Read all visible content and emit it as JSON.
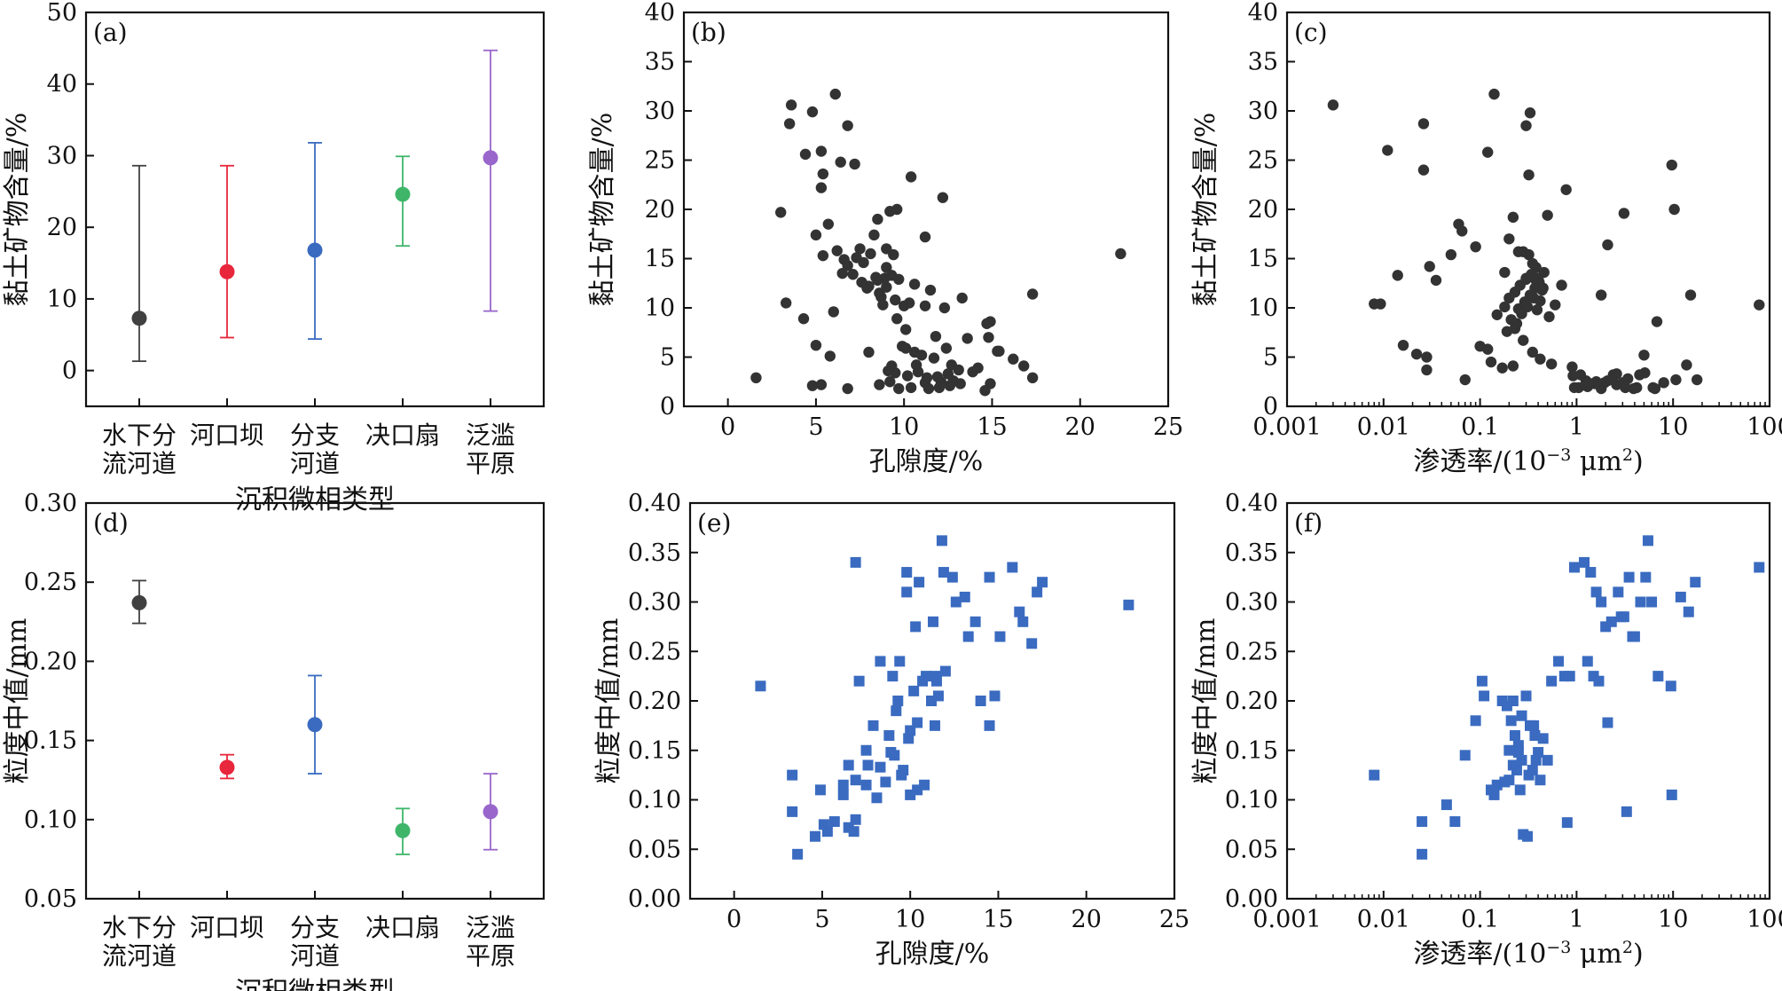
{
  "chart_data": [
    {
      "panel": "(a)",
      "type": "errorbar",
      "categories": [
        "水下分流河道",
        "河口坝",
        "分支河道",
        "决口扇",
        "泛滥平原"
      ],
      "category_labels": [
        [
          "水下分",
          "流河道"
        ],
        [
          "河口坝"
        ],
        [
          "分支",
          "河道"
        ],
        [
          "决口扇"
        ],
        [
          "泛滥",
          "平原"
        ]
      ],
      "values": [
        7.3,
        13.8,
        16.8,
        24.6,
        29.7
      ],
      "min": [
        1.3,
        4.6,
        4.4,
        17.4,
        8.3
      ],
      "max": [
        28.6,
        28.6,
        31.8,
        29.9,
        44.7
      ],
      "colors": [
        "#404040",
        "#e8263c",
        "#3a6bc0",
        "#3fb56a",
        "#9966cc"
      ],
      "xlabel": "沉积微相类型",
      "ylabel": "黏土矿物含量/%",
      "ylim": [
        -5,
        50
      ],
      "yticks": [
        0,
        10,
        20,
        30,
        40,
        50
      ],
      "ytick_labels": [
        "0",
        "10",
        "20",
        "30",
        "40",
        "50"
      ]
    },
    {
      "panel": "(b)",
      "type": "scatter",
      "marker": "circle",
      "color": "#333333",
      "xlabel": "孔隙度/%",
      "ylabel": "黏土矿物含量/%",
      "xlim": [
        -2.5,
        25
      ],
      "ylim": [
        0,
        40
      ],
      "xticks": [
        0,
        5,
        10,
        15,
        20,
        25
      ],
      "xtick_labels": [
        "0",
        "5",
        "10",
        "15",
        "20",
        "25"
      ],
      "yticks": [
        0,
        5,
        10,
        15,
        20,
        25,
        30,
        35,
        40
      ],
      "ytick_labels": [
        "0",
        "5",
        "10",
        "15",
        "20",
        "25",
        "30",
        "35",
        "40"
      ],
      "x": [
        3.6,
        3.5,
        4.8,
        6.1,
        6.8,
        5.3,
        5.4,
        3.0,
        4.4,
        7.2,
        9.2,
        6.4,
        5.3,
        5.7,
        6.2,
        6.6,
        7.1,
        7.5,
        8.1,
        8.5,
        9.4,
        5.0,
        3.3,
        4.3,
        11.2,
        10.4,
        12.2,
        13.3,
        14.9,
        22.3,
        17.3,
        9.0,
        9.6,
        8.3,
        5.0,
        5.8,
        8.0,
        9.9,
        10.1,
        10.6,
        11.0,
        11.7,
        12.7,
        13.9,
        14.2,
        14.8,
        15.4,
        16.2,
        16.8,
        17.3,
        1.6,
        4.8,
        5.3,
        6.8,
        8.6,
        9.2,
        9.7,
        10.4,
        11.4,
        12.0,
        12.6,
        13.2,
        14.9,
        14.6,
        9.1,
        9.5,
        10.2,
        10.8,
        11.3,
        11.9,
        12.5,
        13.1,
        9.3,
        10.7,
        11.2,
        12.1,
        12.8,
        10.0,
        10.3,
        9.5,
        8.6,
        11.5,
        9.0,
        10.6,
        8.9,
        7.6,
        9.3,
        9.0,
        8.5,
        7.9,
        8.7,
        9.7,
        6.5,
        6.8,
        7.3,
        7.7,
        8.4,
        8.0,
        8.8,
        6.0,
        5.4,
        9.6,
        11.8,
        12.3,
        14.7,
        15.3,
        13.6,
        10.1,
        11.2,
        12.4
      ],
      "y": [
        30.6,
        28.7,
        29.9,
        31.7,
        28.5,
        25.9,
        23.6,
        19.7,
        25.6,
        24.6,
        19.8,
        24.8,
        22.2,
        18.5,
        15.8,
        14.9,
        13.4,
        16.0,
        15.5,
        19.0,
        15.4,
        17.4,
        10.5,
        8.9,
        17.2,
        23.3,
        21.2,
        11.0,
        8.6,
        15.5,
        11.4,
        16.0,
        20.0,
        17.4,
        6.2,
        5.1,
        5.5,
        6.1,
        5.9,
        5.5,
        5.2,
        4.9,
        4.2,
        3.5,
        3.9,
        7.0,
        5.6,
        4.8,
        4.1,
        2.9,
        2.9,
        2.1,
        2.2,
        1.8,
        2.2,
        2.5,
        1.8,
        1.9,
        1.8,
        1.9,
        2.1,
        2.3,
        2.3,
        1.6,
        3.6,
        3.4,
        3.1,
        3.5,
        2.9,
        3.0,
        3.3,
        3.7,
        4.1,
        4.2,
        2.4,
        2.5,
        2.6,
        10.2,
        10.5,
        10.8,
        11.5,
        11.8,
        12.1,
        12.4,
        13.0,
        12.6,
        13.3,
        14.1,
        12.8,
        12.0,
        11.1,
        12.9,
        13.5,
        14.3,
        15.1,
        14.6,
        13.1,
        12.2,
        10.3,
        9.6,
        15.3,
        8.9,
        7.1,
        10.0,
        8.4,
        5.6,
        6.9,
        7.8,
        10.2,
        5.9
      ]
    },
    {
      "panel": "(c)",
      "type": "scatter",
      "marker": "circle",
      "color": "#333333",
      "xscale": "log",
      "xlabel": "渗透率/(10⁻³ μm²)",
      "ylabel": "黏土矿物含量/%",
      "xlim": [
        0.001,
        100
      ],
      "ylim": [
        0,
        40
      ],
      "xticks": [
        0.001,
        0.01,
        0.1,
        1,
        10,
        100
      ],
      "xtick_labels": [
        "0.001",
        "0.01",
        "0.1",
        "1",
        "10",
        "100"
      ],
      "yticks": [
        0,
        5,
        10,
        15,
        20,
        25,
        30,
        35,
        40
      ],
      "ytick_labels": [
        "0",
        "5",
        "10",
        "15",
        "20",
        "25",
        "30",
        "35",
        "40"
      ],
      "x": [
        0.003,
        0.0093,
        0.026,
        0.026,
        0.12,
        0.14,
        0.3,
        0.33,
        0.32,
        0.5,
        0.78,
        9.7,
        10.3,
        3.1,
        0.011,
        0.014,
        0.008,
        0.03,
        0.05,
        0.065,
        0.06,
        0.035,
        0.09,
        0.2,
        0.22,
        0.25,
        0.18,
        0.3,
        0.38,
        0.45,
        0.6,
        0.7,
        0.016,
        0.022,
        0.028,
        0.028,
        0.07,
        0.1,
        0.12,
        0.13,
        0.17,
        0.22,
        0.28,
        0.35,
        0.42,
        0.55,
        0.95,
        1.3,
        1.6,
        2.1,
        2.6,
        3.4,
        4.2,
        5.1,
        6.5,
        8.0,
        10.7,
        13.8,
        17.7,
        78,
        0.9,
        1.1,
        1.4,
        1.8,
        2.4,
        3.0,
        3.9,
        5.0,
        6.2,
        4.5,
        0.92,
        1.05,
        1.25,
        1.55,
        1.95,
        2.6,
        3.2,
        0.15,
        0.18,
        0.2,
        0.23,
        0.26,
        0.3,
        0.34,
        0.38,
        0.42,
        0.21,
        0.25,
        0.29,
        0.33,
        0.37,
        0.41,
        0.46,
        0.19,
        0.24,
        0.27,
        0.31,
        0.36,
        0.44,
        0.52,
        0.28,
        0.32,
        0.35,
        0.4,
        2.1,
        1.8,
        15.2,
        6.8,
        0.23,
        0.39
      ],
      "y": [
        30.6,
        10.4,
        28.7,
        24.0,
        25.8,
        31.7,
        28.5,
        29.8,
        23.5,
        19.4,
        22.0,
        24.5,
        20.0,
        19.6,
        26.0,
        13.3,
        10.4,
        14.2,
        15.4,
        17.8,
        18.5,
        12.8,
        16.2,
        17.0,
        19.2,
        15.7,
        13.6,
        13.0,
        12.8,
        12.0,
        10.3,
        12.3,
        6.2,
        5.3,
        5.0,
        3.7,
        2.7,
        6.1,
        5.8,
        4.5,
        3.9,
        4.1,
        6.7,
        5.5,
        4.8,
        4.3,
        1.9,
        2.0,
        2.5,
        2.6,
        2.2,
        2.8,
        1.9,
        3.4,
        1.8,
        2.4,
        2.7,
        4.2,
        2.7,
        10.3,
        4.0,
        3.2,
        2.3,
        1.8,
        3.2,
        2.4,
        1.8,
        5.2,
        1.9,
        3.2,
        3.1,
        1.9,
        2.6,
        2.3,
        2.4,
        3.3,
        1.9,
        9.3,
        10.1,
        11.0,
        11.6,
        12.3,
        12.9,
        13.4,
        14.1,
        10.7,
        8.8,
        9.9,
        10.6,
        11.3,
        12.0,
        12.6,
        13.6,
        7.6,
        8.4,
        9.4,
        10.1,
        11.0,
        11.8,
        9.1,
        15.7,
        15.4,
        14.5,
        13.0,
        16.4,
        11.3,
        11.3,
        8.6,
        7.9,
        9.8
      ]
    },
    {
      "panel": "(d)",
      "type": "errorbar",
      "categories": [
        "水下分流河道",
        "河口坝",
        "分支河道",
        "决口扇",
        "泛滥平原"
      ],
      "category_labels": [
        [
          "水下分",
          "流河道"
        ],
        [
          "河口坝"
        ],
        [
          "分支",
          "河道"
        ],
        [
          "决口扇"
        ],
        [
          "泛滥",
          "平原"
        ]
      ],
      "values": [
        0.237,
        0.133,
        0.16,
        0.093,
        0.105
      ],
      "min": [
        0.224,
        0.126,
        0.129,
        0.078,
        0.081
      ],
      "max": [
        0.251,
        0.141,
        0.191,
        0.107,
        0.129
      ],
      "colors": [
        "#404040",
        "#e8263c",
        "#3a6bc0",
        "#3fb56a",
        "#9966cc"
      ],
      "xlabel": "沉积微相类型",
      "ylabel": "粒度中值/mm",
      "ylim": [
        0.05,
        0.3
      ],
      "yticks": [
        0.05,
        0.1,
        0.15,
        0.2,
        0.25,
        0.3
      ],
      "ytick_labels": [
        "0.05",
        "0.10",
        "0.15",
        "0.20",
        "0.25",
        "0.30"
      ]
    },
    {
      "panel": "(e)",
      "type": "scatter",
      "marker": "square",
      "color": "#3a6bc0",
      "xlabel": "孔隙度/%",
      "ylabel": "粒度中值/mm",
      "xlim": [
        -2.5,
        25
      ],
      "ylim": [
        0,
        0.4
      ],
      "xticks": [
        0,
        5,
        10,
        15,
        20,
        25
      ],
      "xtick_labels": [
        "0",
        "5",
        "10",
        "15",
        "20",
        "25"
      ],
      "yticks": [
        0,
        0.05,
        0.1,
        0.15,
        0.2,
        0.25,
        0.3,
        0.35,
        0.4
      ],
      "ytick_labels": [
        "0.00",
        "0.05",
        "0.10",
        "0.15",
        "0.20",
        "0.25",
        "0.30",
        "0.35",
        "0.40"
      ],
      "x": [
        1.5,
        3.3,
        3.6,
        3.3,
        4.6,
        4.9,
        5.1,
        5.3,
        5.7,
        6.2,
        6.5,
        6.8,
        6.2,
        6.5,
        6.9,
        7.5,
        7.9,
        8.3,
        8.8,
        9.2,
        9.6,
        10.0,
        6.9,
        7.5,
        8.1,
        8.6,
        9.1,
        9.5,
        10.0,
        10.4,
        10.8,
        11.2,
        11.6,
        7.1,
        7.6,
        8.3,
        8.9,
        9.3,
        9.9,
        10.4,
        10.9,
        11.4,
        9.0,
        9.4,
        10.2,
        10.7,
        11.3,
        11.9,
        12.4,
        13.1,
        13.7,
        14.5,
        15.1,
        15.8,
        16.4,
        17.2,
        9.8,
        10.3,
        11.5,
        12.0,
        12.6,
        13.3,
        14.0,
        14.8,
        16.2,
        16.9,
        17.5,
        22.4,
        11.8,
        9.8,
        6.9,
        14.5,
        11.4,
        10.5
      ],
      "y": [
        0.215,
        0.125,
        0.045,
        0.088,
        0.063,
        0.11,
        0.075,
        0.068,
        0.078,
        0.105,
        0.072,
        0.068,
        0.115,
        0.135,
        0.12,
        0.15,
        0.175,
        0.133,
        0.165,
        0.19,
        0.13,
        0.17,
        0.08,
        0.115,
        0.102,
        0.118,
        0.145,
        0.125,
        0.105,
        0.11,
        0.115,
        0.2,
        0.205,
        0.22,
        0.135,
        0.24,
        0.148,
        0.2,
        0.162,
        0.178,
        0.225,
        0.175,
        0.225,
        0.24,
        0.21,
        0.22,
        0.28,
        0.33,
        0.325,
        0.305,
        0.28,
        0.325,
        0.265,
        0.335,
        0.28,
        0.31,
        0.33,
        0.275,
        0.22,
        0.23,
        0.3,
        0.265,
        0.2,
        0.205,
        0.29,
        0.258,
        0.32,
        0.297,
        0.362,
        0.31,
        0.34,
        0.175,
        0.225,
        0.32
      ]
    },
    {
      "panel": "(f)",
      "type": "scatter",
      "marker": "square",
      "color": "#3a6bc0",
      "xscale": "log",
      "xlabel": "渗透率/(10⁻³ μm²)",
      "ylabel": "粒度中值/mm",
      "xlim": [
        0.001,
        100
      ],
      "ylim": [
        0,
        0.4
      ],
      "xticks": [
        0.001,
        0.01,
        0.1,
        1,
        10,
        100
      ],
      "xtick_labels": [
        "0.001",
        "0.01",
        "0.1",
        "1",
        "10",
        "100"
      ],
      "yticks": [
        0,
        0.05,
        0.1,
        0.15,
        0.2,
        0.25,
        0.3,
        0.35,
        0.4
      ],
      "ytick_labels": [
        "0.00",
        "0.05",
        "0.10",
        "0.15",
        "0.20",
        "0.25",
        "0.30",
        "0.35",
        "0.40"
      ],
      "x": [
        0.008,
        0.025,
        0.025,
        0.045,
        0.055,
        0.07,
        0.09,
        0.105,
        0.11,
        0.13,
        0.14,
        0.15,
        0.17,
        0.19,
        0.21,
        0.23,
        0.25,
        0.27,
        0.3,
        0.33,
        0.36,
        0.4,
        0.45,
        0.5,
        0.55,
        0.65,
        0.75,
        0.85,
        0.95,
        0.2,
        0.22,
        0.24,
        0.26,
        0.28,
        0.32,
        0.35,
        0.38,
        0.42,
        0.27,
        0.31,
        0.18,
        0.2,
        0.22,
        0.25,
        1.2,
        1.4,
        1.6,
        1.8,
        2.0,
        2.3,
        2.7,
        3.1,
        3.5,
        4.0,
        4.6,
        5.2,
        6.0,
        7.0,
        9.5,
        12.0,
        14.5,
        17.0,
        78,
        1.3,
        1.5,
        2.1,
        2.9,
        3.8,
        5.5,
        1.7,
        9.7,
        3.3,
        0.8,
        0.37
      ],
      "y": [
        0.125,
        0.078,
        0.045,
        0.095,
        0.078,
        0.145,
        0.18,
        0.22,
        0.205,
        0.11,
        0.105,
        0.115,
        0.2,
        0.195,
        0.18,
        0.165,
        0.155,
        0.185,
        0.205,
        0.175,
        0.175,
        0.148,
        0.162,
        0.14,
        0.22,
        0.24,
        0.225,
        0.225,
        0.335,
        0.12,
        0.135,
        0.13,
        0.11,
        0.065,
        0.125,
        0.13,
        0.14,
        0.12,
        0.14,
        0.063,
        0.118,
        0.15,
        0.2,
        0.148,
        0.34,
        0.33,
        0.31,
        0.3,
        0.275,
        0.28,
        0.31,
        0.285,
        0.325,
        0.265,
        0.3,
        0.325,
        0.3,
        0.225,
        0.215,
        0.305,
        0.29,
        0.32,
        0.335,
        0.24,
        0.225,
        0.178,
        0.285,
        0.265,
        0.362,
        0.22,
        0.105,
        0.088,
        0.077,
        0.165
      ]
    }
  ]
}
